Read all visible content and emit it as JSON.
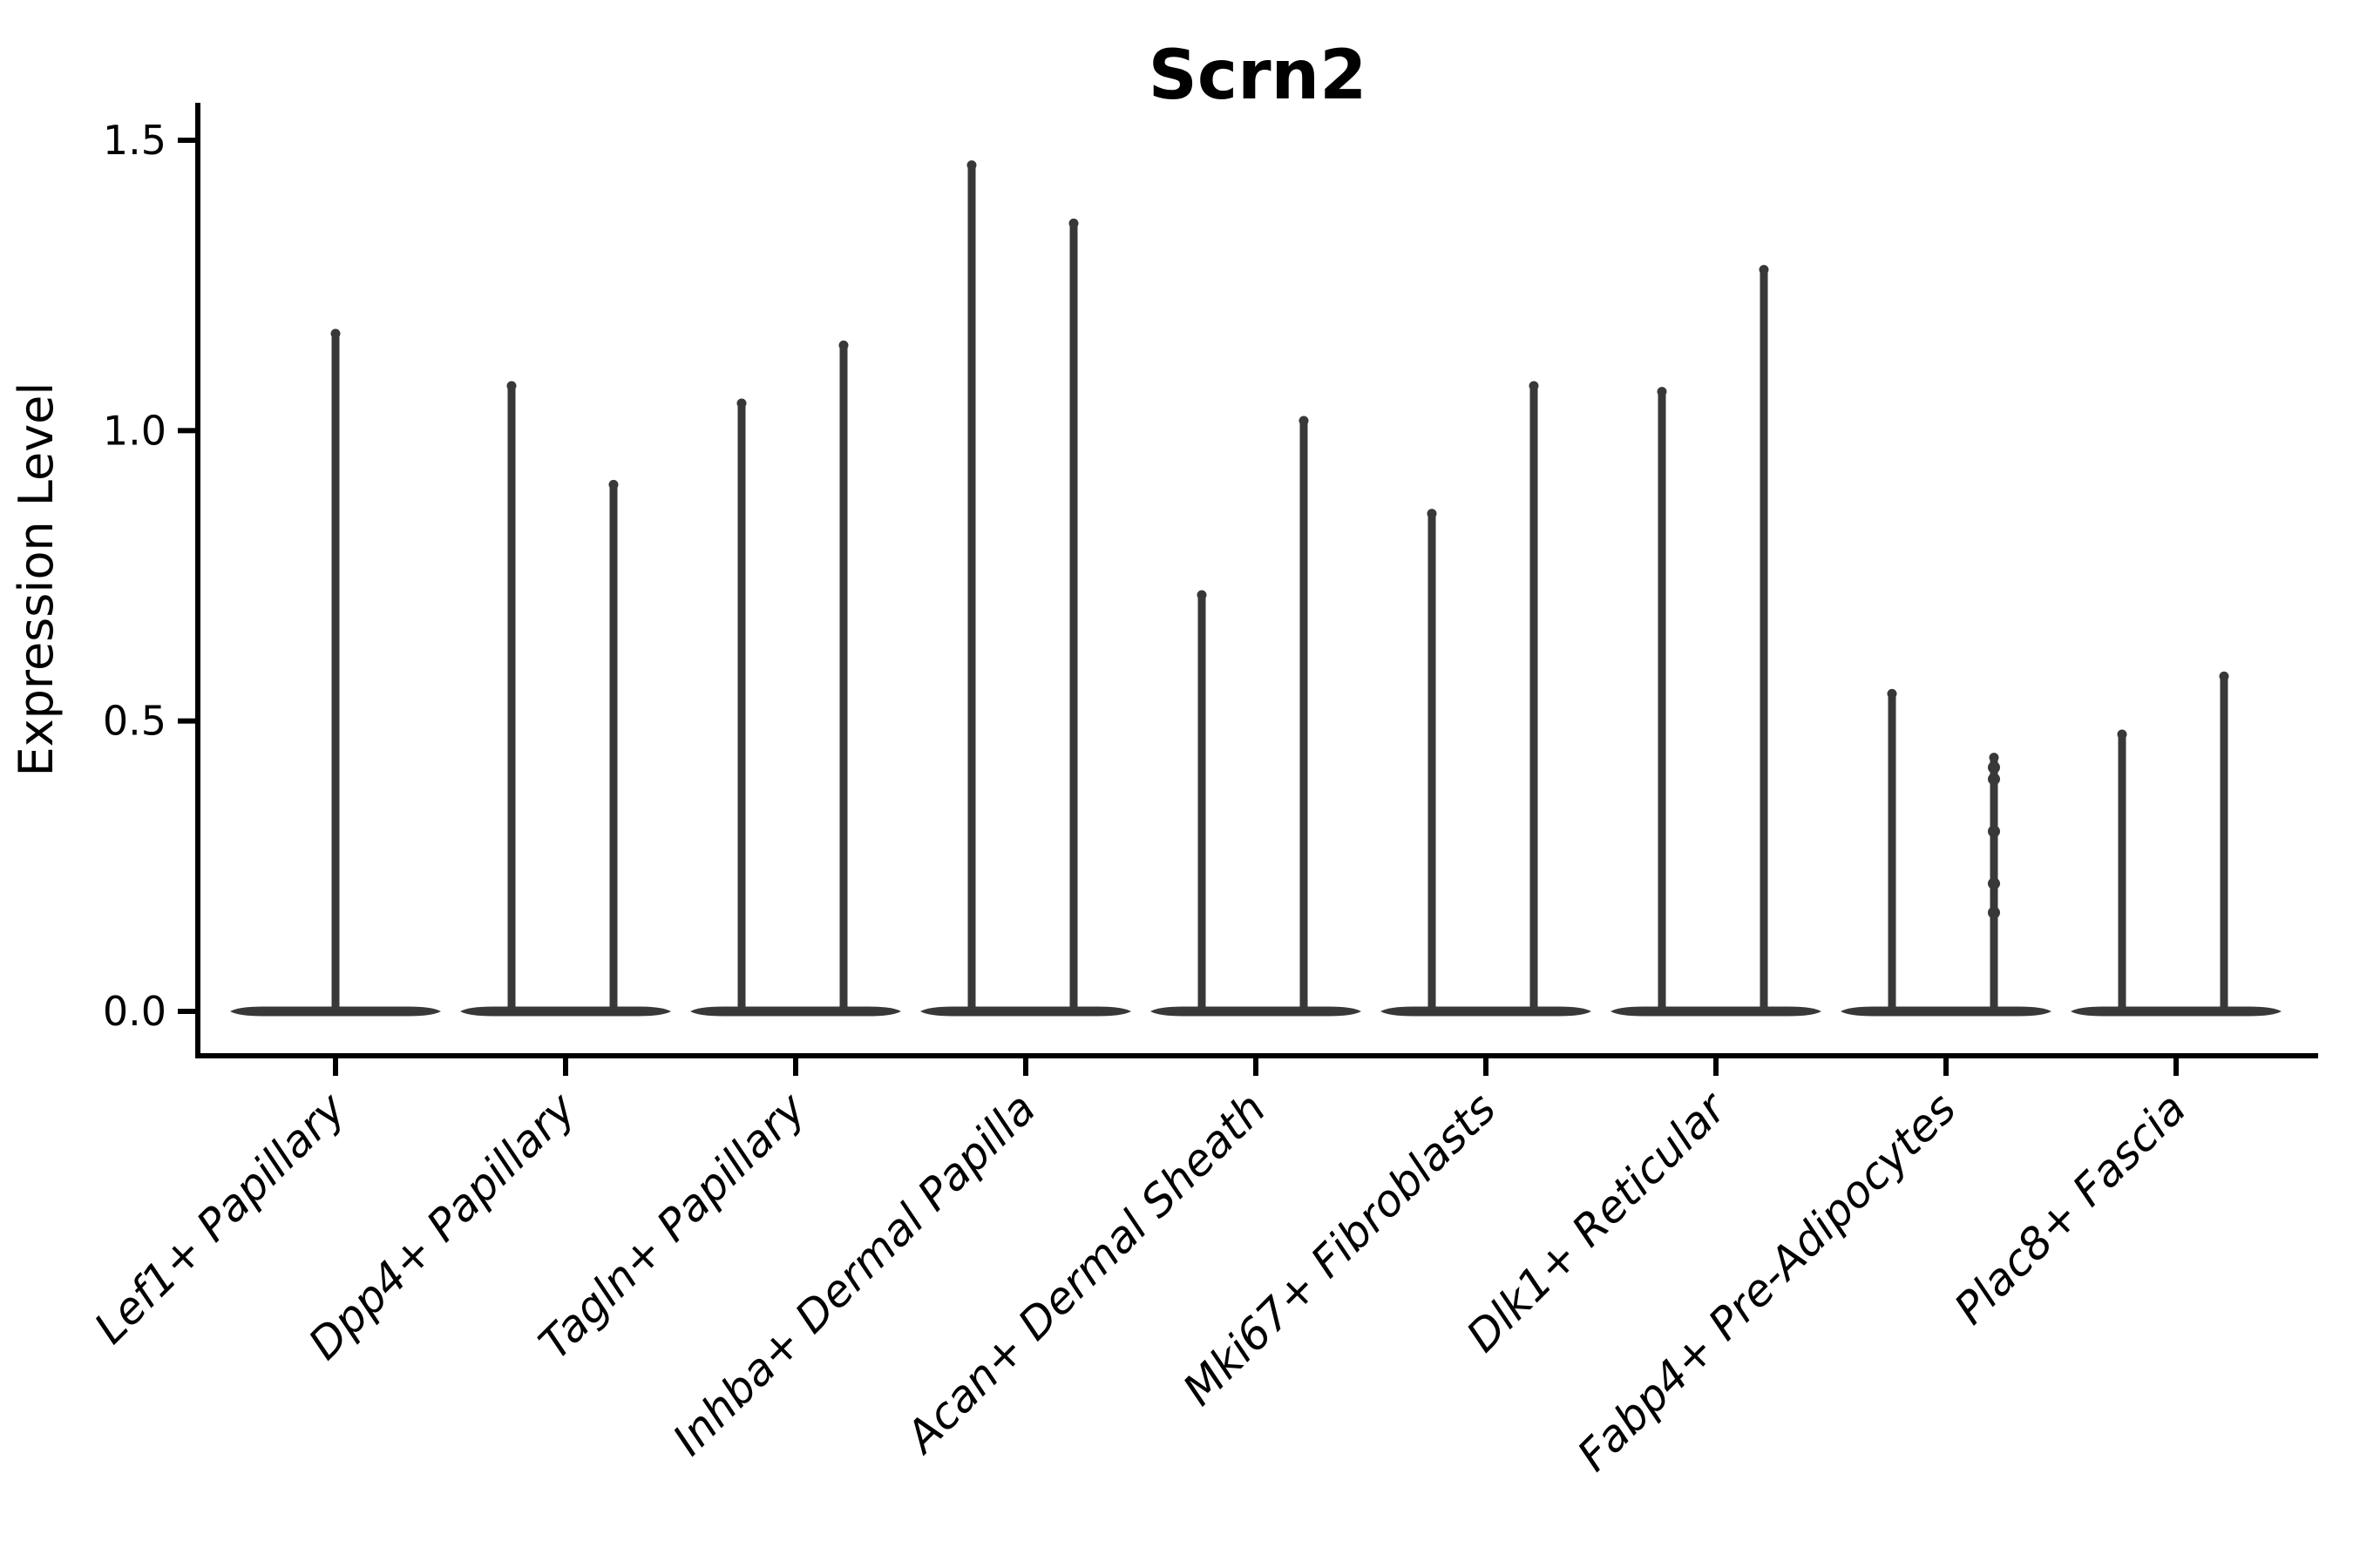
{
  "figure": {
    "background": "#ffffff",
    "axis_color": "#000000",
    "text_color": "#000000"
  },
  "chart_data": {
    "type": "violin",
    "title": "Scrn2",
    "xlabel": "",
    "ylabel": "Expression Level",
    "ylim": [
      0,
      1.5
    ],
    "grid": false,
    "legend": "none",
    "violin_color": "#383838",
    "yticks": [
      {
        "value": 0.0,
        "label": "0.0"
      },
      {
        "value": 0.5,
        "label": "0.5"
      },
      {
        "value": 1.0,
        "label": "1.0"
      },
      {
        "value": 1.5,
        "label": "1.5"
      }
    ],
    "categories": [
      "Lef1+ Papillary",
      "Dpp4+ Papillary",
      "Tagln+ Papillary",
      "Inhba+ Dermal Papilla",
      "Acan+ Dermal Sheath",
      "Mki67+ Fibroblasts",
      "Dlk1+ Reticular",
      "Fabp4+ Pre-Adipocytes",
      "Plac8+ Fascia"
    ],
    "violins": [
      {
        "category": "Lef1+ Papillary",
        "spikes": [
          {
            "position": "center",
            "max": 1.17
          }
        ]
      },
      {
        "category": "Dpp4+ Papillary",
        "spikes": [
          {
            "position": "left",
            "max": 1.08
          },
          {
            "position": "right",
            "max": 0.91
          }
        ]
      },
      {
        "category": "Tagln+ Papillary",
        "spikes": [
          {
            "position": "left",
            "max": 1.05
          },
          {
            "position": "right",
            "max": 1.15
          }
        ]
      },
      {
        "category": "Inhba+ Dermal Papilla",
        "spikes": [
          {
            "position": "left",
            "max": 1.46
          },
          {
            "position": "right",
            "max": 1.36
          }
        ]
      },
      {
        "category": "Acan+ Dermal Sheath",
        "spikes": [
          {
            "position": "left",
            "max": 0.72
          },
          {
            "position": "right",
            "max": 1.02
          }
        ]
      },
      {
        "category": "Mki67+ Fibroblasts",
        "spikes": [
          {
            "position": "left",
            "max": 0.86
          },
          {
            "position": "right",
            "max": 1.08
          }
        ]
      },
      {
        "category": "Dlk1+ Reticular",
        "spikes": [
          {
            "position": "left",
            "max": 1.07
          },
          {
            "position": "right",
            "max": 1.28
          }
        ]
      },
      {
        "category": "Fabp4+ Pre-Adipocytes",
        "spikes": [
          {
            "position": "left",
            "max": 0.55
          },
          {
            "position": "right",
            "max": 0.44,
            "points": [
              0.42,
              0.4,
              0.31,
              0.22,
              0.17
            ]
          }
        ]
      },
      {
        "category": "Plac8+ Fascia",
        "spikes": [
          {
            "position": "left",
            "max": 0.48
          },
          {
            "position": "right",
            "max": 0.58
          }
        ]
      }
    ]
  }
}
